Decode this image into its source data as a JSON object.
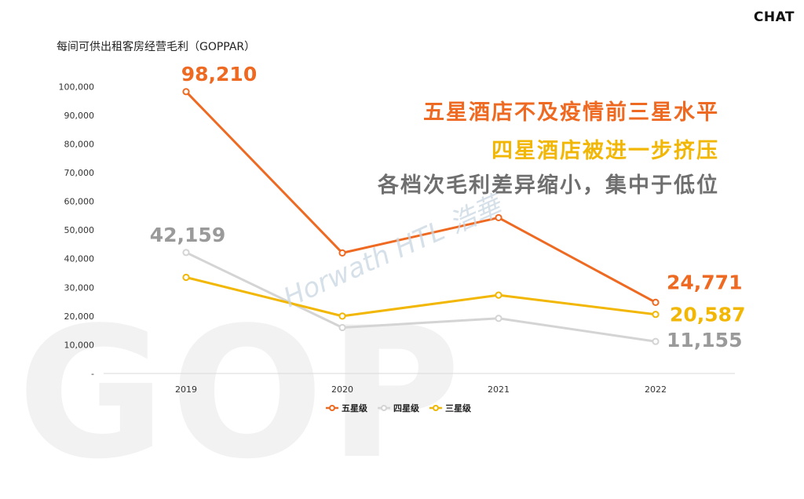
{
  "brand": "CHAT",
  "watermark": "GOP",
  "logo_watermark": "Horwath HTL 浩華",
  "headlines": [
    "五星酒店不及疫情前三星水平",
    "四星酒店被进一步挤压",
    "各档次毛利差异缩小，集中于低位"
  ],
  "colors": {
    "five_star": "#ee6a22",
    "four_star": "#d4d4d4",
    "three_star": "#f2b705",
    "label_gray": "#9a9a9a"
  },
  "chart_data": {
    "type": "line",
    "title": "每间可供出租客房经营毛利（GOPPAR）",
    "categories": [
      "2019",
      "2020",
      "2021",
      "2022"
    ],
    "ylim": [
      0,
      105000
    ],
    "yticks": [
      {
        "value": 0,
        "label": "-"
      },
      {
        "value": 10000,
        "label": "10,000"
      },
      {
        "value": 20000,
        "label": "20,000"
      },
      {
        "value": 30000,
        "label": "30,000"
      },
      {
        "value": 40000,
        "label": "40,000"
      },
      {
        "value": 50000,
        "label": "50,000"
      },
      {
        "value": 60000,
        "label": "60,000"
      },
      {
        "value": 70000,
        "label": "70,000"
      },
      {
        "value": 80000,
        "label": "80,000"
      },
      {
        "value": 90000,
        "label": "90,000"
      },
      {
        "value": 100000,
        "label": "100,000"
      }
    ],
    "grid": false,
    "legend": "bottom",
    "series": [
      {
        "name": "五星级",
        "color": "#ee6a22",
        "values": [
          98210,
          42000,
          54300,
          24771
        ],
        "annotations": [
          {
            "index": 0,
            "label": "98,210"
          },
          {
            "index": 3,
            "label": "24,771"
          }
        ]
      },
      {
        "name": "四星级",
        "color": "#d4d4d4",
        "values": [
          42159,
          16000,
          19200,
          11155
        ],
        "annotations": [
          {
            "index": 0,
            "label": "42,159"
          },
          {
            "index": 3,
            "label": "11,155"
          }
        ]
      },
      {
        "name": "三星级",
        "color": "#f2b705",
        "values": [
          33500,
          20000,
          27300,
          20587
        ],
        "annotations": [
          {
            "index": 3,
            "label": "20,587"
          }
        ]
      }
    ]
  }
}
